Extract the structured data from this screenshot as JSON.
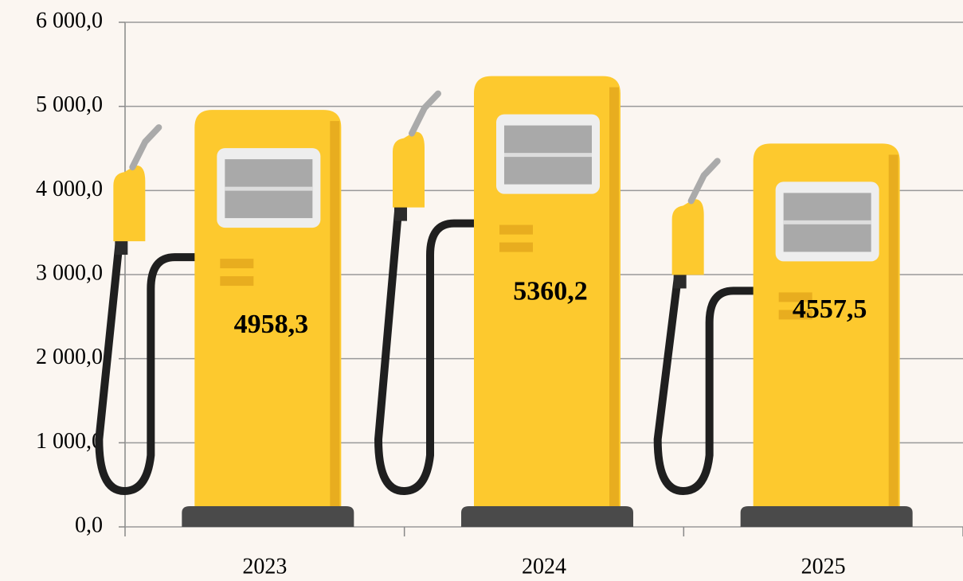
{
  "chart_data": {
    "type": "bar",
    "categories": [
      "2023",
      "2024",
      "2025"
    ],
    "values": [
      4958.3,
      5360.2,
      4557.5
    ],
    "value_labels": [
      "4958,3",
      "5360,2",
      "4557,5"
    ],
    "color": "#fdc92e",
    "ylim": [
      0,
      6000
    ],
    "yticks": [
      {
        "value": 0,
        "label": "0,0"
      },
      {
        "value": 1000,
        "label": "1 000,0"
      },
      {
        "value": 2000,
        "label": "2 000,0"
      },
      {
        "value": 3000,
        "label": "3 000,0"
      },
      {
        "value": 4000,
        "label": "4 000,0"
      },
      {
        "value": 5000,
        "label": "5 000,0"
      },
      {
        "value": 6000,
        "label": "6 000,0"
      }
    ],
    "grid": true
  }
}
